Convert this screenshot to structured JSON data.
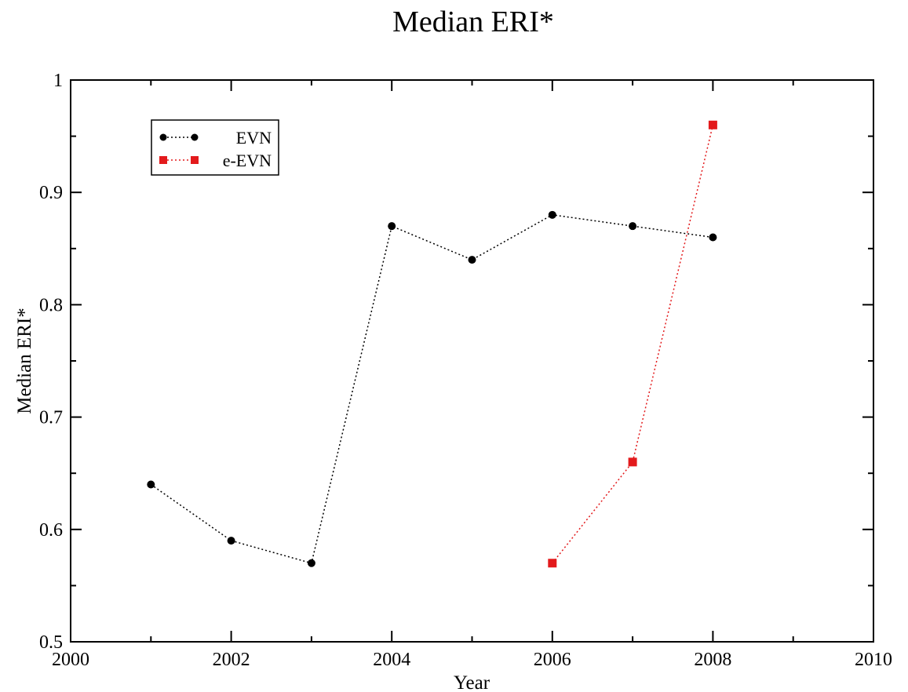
{
  "chart_data": {
    "type": "line",
    "title": "Median ERI*",
    "xlabel": "Year",
    "ylabel": "Median ERI*",
    "xlim": [
      2000,
      2010
    ],
    "ylim": [
      0.5,
      1.0
    ],
    "x_ticks": [
      2000,
      2002,
      2004,
      2006,
      2008,
      2010
    ],
    "x_tick_labels": [
      "2000",
      "2002",
      "2004",
      "2006",
      "2008",
      "2010"
    ],
    "y_ticks": [
      0.5,
      0.6,
      0.7,
      0.8,
      0.9,
      1.0
    ],
    "y_tick_labels": [
      "0.5",
      "0.6",
      "0.7",
      "0.8",
      "0.9",
      "1"
    ],
    "grid": false,
    "legend_position": "top-left",
    "series": [
      {
        "name": "EVN",
        "color": "#000000",
        "marker": "circle",
        "line_style": "dotted",
        "x": [
          2001,
          2002,
          2003,
          2004,
          2005,
          2006,
          2007,
          2008
        ],
        "y": [
          0.64,
          0.59,
          0.57,
          0.87,
          0.84,
          0.88,
          0.87,
          0.86
        ]
      },
      {
        "name": "e-EVN",
        "color": "#e31a1c",
        "marker": "square",
        "line_style": "dotted",
        "x": [
          2006,
          2007,
          2008
        ],
        "y": [
          0.57,
          0.66,
          0.96
        ]
      }
    ]
  }
}
